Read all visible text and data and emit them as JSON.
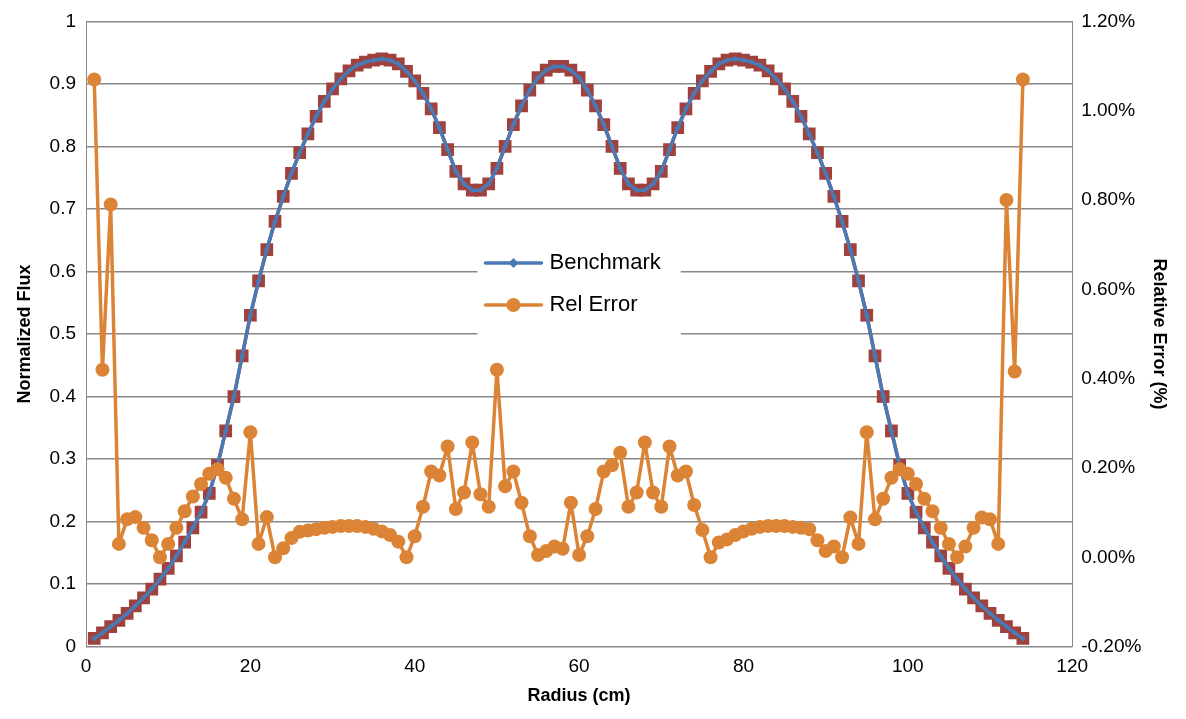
{
  "chart_data": {
    "type": "line",
    "xlabel": "Radius (cm)",
    "ylabel": "Normalized Flux",
    "y2label": "Relative Error (%)",
    "x": [
      1,
      2,
      3,
      4,
      5,
      6,
      7,
      8,
      9,
      10,
      11,
      12,
      13,
      14,
      15,
      16,
      17,
      18,
      19,
      20,
      21,
      22,
      23,
      24,
      25,
      26,
      27,
      28,
      29,
      30,
      31,
      32,
      33,
      34,
      35,
      36,
      37,
      38,
      39,
      40,
      41,
      42,
      43,
      44,
      45,
      46,
      47,
      48,
      49,
      50,
      51,
      52,
      53,
      54,
      55,
      56,
      57,
      58,
      59,
      60,
      61,
      62,
      63,
      64,
      65,
      66,
      67,
      68,
      69,
      70,
      71,
      72,
      73,
      74,
      75,
      76,
      77,
      78,
      79,
      80,
      81,
      82,
      83,
      84,
      85,
      86,
      87,
      88,
      89,
      90,
      91,
      92,
      93,
      94,
      95,
      96,
      97,
      98,
      99,
      100,
      101,
      102,
      103,
      104,
      105,
      106,
      107,
      108,
      109,
      110,
      111,
      112,
      113,
      114
    ],
    "xlim": [
      0,
      120
    ],
    "xticks": [
      0,
      20,
      40,
      60,
      80,
      100,
      120
    ],
    "ylim": [
      0,
      1
    ],
    "yticks": [
      0,
      0.1,
      0.2,
      0.3,
      0.4,
      0.5,
      0.6,
      0.7,
      0.8,
      0.9,
      1
    ],
    "y2lim": [
      -0.2,
      1.2
    ],
    "y2ticks": [
      {
        "value": -0.2,
        "label": "-0.20%"
      },
      {
        "value": 0,
        "label": "0.00%"
      },
      {
        "value": 0.2,
        "label": "0.20%"
      },
      {
        "value": 0.4,
        "label": "0.40%"
      },
      {
        "value": 0.6,
        "label": "0.60%"
      },
      {
        "value": 0.8,
        "label": "0.80%"
      },
      {
        "value": 1,
        "label": "1.00%"
      },
      {
        "value": 1.2,
        "label": "1.20%"
      }
    ],
    "grid": "y",
    "legend": "center",
    "line_style": "solid",
    "series": [
      {
        "color": "#a0413e",
        "marker": "square",
        "values": [
          0.013,
          0.022,
          0.032,
          0.042,
          0.053,
          0.065,
          0.078,
          0.092,
          0.108,
          0.125,
          0.145,
          0.167,
          0.19,
          0.215,
          0.245,
          0.29,
          0.345,
          0.4,
          0.465,
          0.53,
          0.585,
          0.635,
          0.68,
          0.72,
          0.757,
          0.79,
          0.82,
          0.848,
          0.872,
          0.892,
          0.908,
          0.921,
          0.93,
          0.935,
          0.938,
          0.94,
          0.938,
          0.932,
          0.92,
          0.905,
          0.885,
          0.86,
          0.83,
          0.795,
          0.76,
          0.74,
          0.73,
          0.73,
          0.74,
          0.765,
          0.8,
          0.835,
          0.865,
          0.89,
          0.91,
          0.922,
          0.928,
          0.928,
          0.922,
          0.91,
          0.89,
          0.865,
          0.835,
          0.8,
          0.765,
          0.74,
          0.73,
          0.73,
          0.74,
          0.76,
          0.795,
          0.83,
          0.86,
          0.885,
          0.905,
          0.92,
          0.932,
          0.938,
          0.94,
          0.938,
          0.935,
          0.93,
          0.921,
          0.908,
          0.892,
          0.872,
          0.848,
          0.82,
          0.79,
          0.757,
          0.72,
          0.68,
          0.635,
          0.585,
          0.53,
          0.465,
          0.4,
          0.345,
          0.29,
          0.245,
          0.215,
          0.19,
          0.167,
          0.145,
          0.125,
          0.108,
          0.092,
          0.078,
          0.065,
          0.053,
          0.042,
          0.032,
          0.022,
          0.013
        ]
      },
      {
        "name": "Benchmark",
        "color": "#4a7ab5",
        "marker": "diamond",
        "values": [
          0.013,
          0.022,
          0.032,
          0.042,
          0.053,
          0.065,
          0.078,
          0.092,
          0.108,
          0.125,
          0.145,
          0.167,
          0.19,
          0.215,
          0.245,
          0.29,
          0.345,
          0.4,
          0.465,
          0.53,
          0.585,
          0.635,
          0.68,
          0.72,
          0.757,
          0.79,
          0.82,
          0.848,
          0.872,
          0.892,
          0.908,
          0.921,
          0.93,
          0.935,
          0.938,
          0.94,
          0.938,
          0.932,
          0.92,
          0.905,
          0.885,
          0.86,
          0.83,
          0.795,
          0.76,
          0.74,
          0.73,
          0.73,
          0.74,
          0.765,
          0.8,
          0.835,
          0.865,
          0.89,
          0.91,
          0.922,
          0.928,
          0.928,
          0.922,
          0.91,
          0.89,
          0.865,
          0.835,
          0.8,
          0.765,
          0.74,
          0.73,
          0.73,
          0.74,
          0.76,
          0.795,
          0.83,
          0.86,
          0.885,
          0.905,
          0.92,
          0.932,
          0.938,
          0.94,
          0.938,
          0.935,
          0.93,
          0.921,
          0.908,
          0.892,
          0.872,
          0.848,
          0.82,
          0.79,
          0.757,
          0.72,
          0.68,
          0.635,
          0.585,
          0.53,
          0.465,
          0.4,
          0.345,
          0.29,
          0.245,
          0.215,
          0.19,
          0.167,
          0.145,
          0.125,
          0.108,
          0.092,
          0.078,
          0.065,
          0.053,
          0.042,
          0.032,
          0.022,
          0.013
        ]
      },
      {
        "name": "Rel Error",
        "color": "#dc8436",
        "marker": "circle",
        "axis": "y2",
        "values": [
          1.07,
          0.42,
          0.79,
          0.03,
          0.085,
          0.09,
          0.066,
          0.038,
          0.0,
          0.03,
          0.066,
          0.103,
          0.136,
          0.164,
          0.187,
          0.197,
          0.178,
          0.131,
          0.085,
          0.28,
          0.03,
          0.09,
          0.0,
          0.02,
          0.043,
          0.057,
          0.06,
          0.063,
          0.066,
          0.068,
          0.07,
          0.07,
          0.07,
          0.068,
          0.064,
          0.058,
          0.05,
          0.035,
          0.0,
          0.047,
          0.113,
          0.192,
          0.183,
          0.248,
          0.108,
          0.145,
          0.257,
          0.141,
          0.113,
          0.42,
          0.159,
          0.192,
          0.122,
          0.047,
          0.005,
          0.014,
          0.024,
          0.019,
          0.122,
          0.005,
          0.047,
          0.108,
          0.192,
          0.206,
          0.234,
          0.113,
          0.145,
          0.257,
          0.145,
          0.113,
          0.248,
          0.183,
          0.192,
          0.117,
          0.061,
          0.0,
          0.033,
          0.04,
          0.05,
          0.058,
          0.064,
          0.068,
          0.07,
          0.07,
          0.07,
          0.068,
          0.066,
          0.063,
          0.038,
          0.014,
          0.024,
          0.0,
          0.089,
          0.03,
          0.28,
          0.085,
          0.131,
          0.178,
          0.197,
          0.187,
          0.164,
          0.131,
          0.103,
          0.066,
          0.03,
          0.0,
          0.024,
          0.066,
          0.089,
          0.085,
          0.03,
          0.8,
          0.416,
          1.07
        ]
      }
    ]
  }
}
